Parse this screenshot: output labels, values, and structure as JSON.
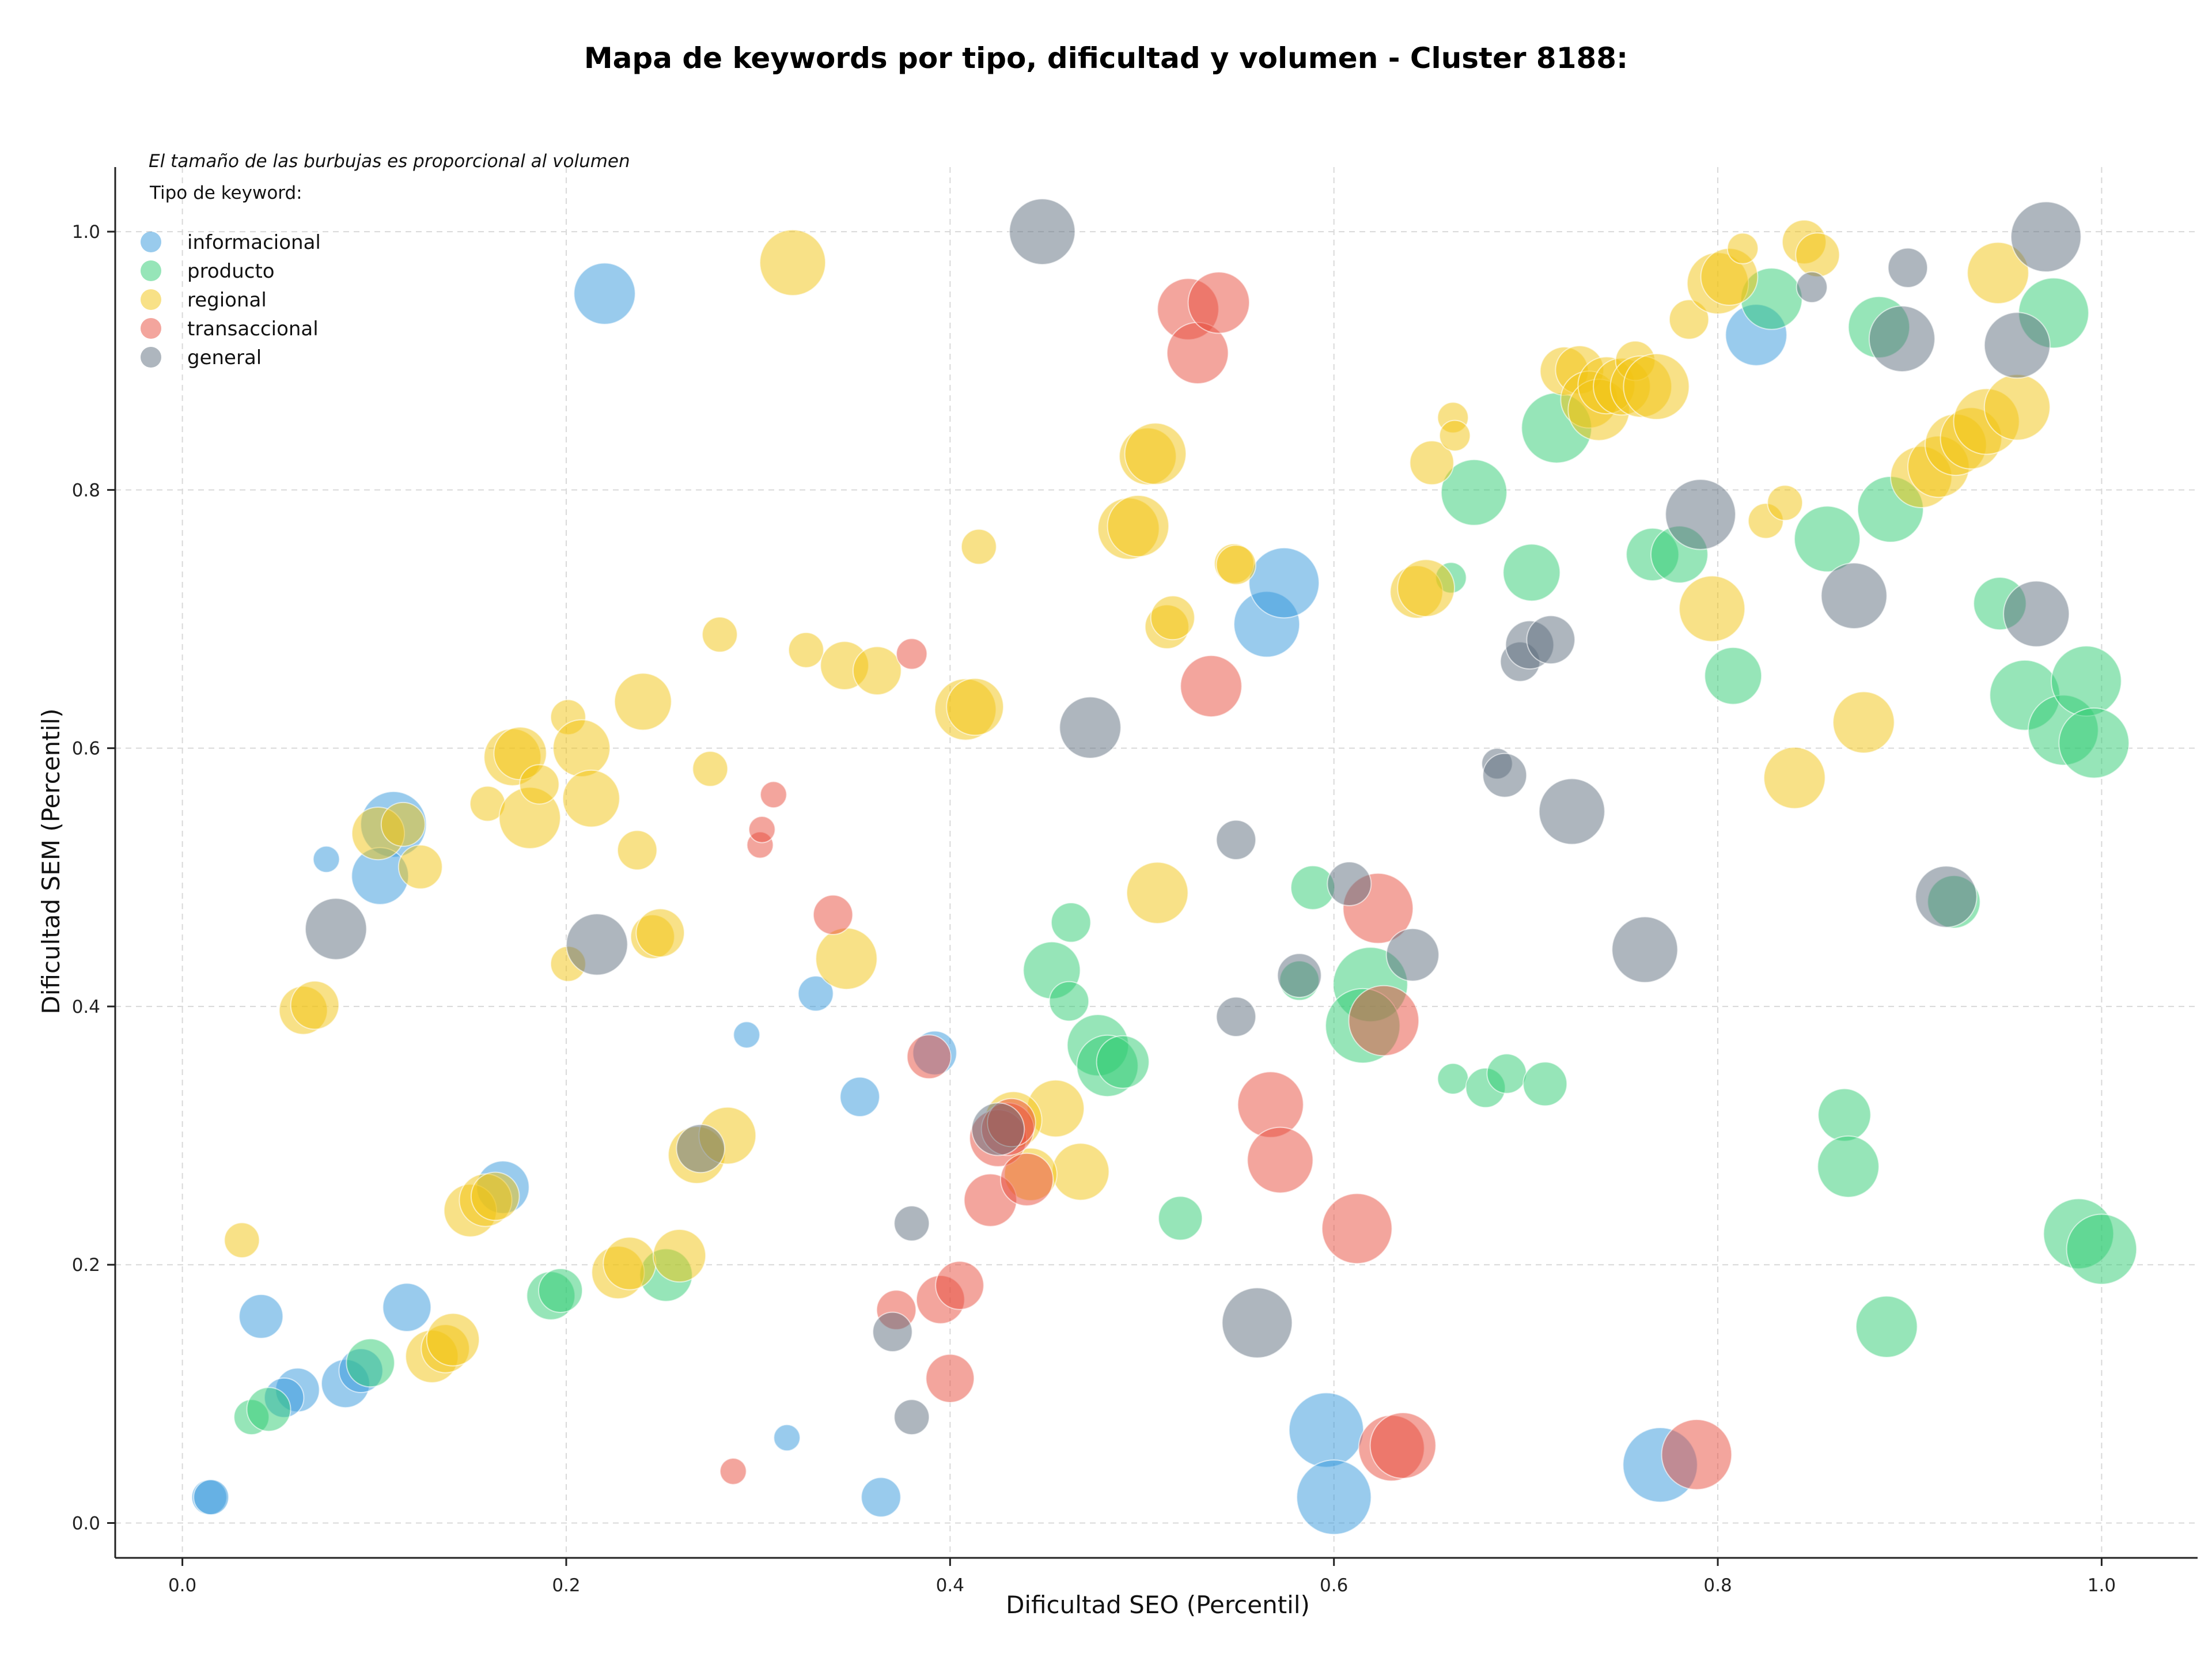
{
  "chart_data": {
    "type": "scatter",
    "title": "Mapa de keywords por tipo, dificultad y volumen - Cluster 8188:",
    "note": "El tamaño de las burbujas es proporcional al volumen",
    "xlabel": "Dificultad SEO (Percentil)",
    "ylabel": "Dificultad SEM (Percentil)",
    "xlim": [
      -0.035,
      1.05
    ],
    "ylim": [
      -0.027,
      1.05
    ],
    "xticks": [
      "0.0",
      "0.2",
      "0.4",
      "0.6",
      "0.8",
      "1.0"
    ],
    "yticks": [
      "0.0",
      "0.2",
      "0.4",
      "0.6",
      "0.8",
      "1.0"
    ],
    "grid": true,
    "legend": {
      "title": "Tipo de keyword:",
      "placement": "top-left"
    },
    "series": [
      {
        "name": "informacional",
        "color": "#3498db",
        "points": [
          [
            0.22,
            0.952,
            1.4
          ],
          [
            0.11,
            0.541,
            1.5
          ],
          [
            0.103,
            0.501,
            1.3
          ],
          [
            0.075,
            0.514,
            0.6
          ],
          [
            0.167,
            0.26,
            1.2
          ],
          [
            0.041,
            0.16,
            1.0
          ],
          [
            0.117,
            0.167,
            1.1
          ],
          [
            0.06,
            0.103,
            1.0
          ],
          [
            0.053,
            0.097,
            0.9
          ],
          [
            0.085,
            0.108,
            1.1
          ],
          [
            0.093,
            0.118,
            1.0
          ],
          [
            0.014,
            0.02,
            0.8
          ],
          [
            0.015,
            0.02,
            0.8
          ],
          [
            0.294,
            0.378,
            0.6
          ],
          [
            0.33,
            0.41,
            0.8
          ],
          [
            0.353,
            0.33,
            0.9
          ],
          [
            0.392,
            0.364,
            1.0
          ],
          [
            0.315,
            0.066,
            0.6
          ],
          [
            0.364,
            0.02,
            0.9
          ],
          [
            0.565,
            0.696,
            1.5
          ],
          [
            0.574,
            0.728,
            1.6
          ],
          [
            0.596,
            0.072,
            1.7
          ],
          [
            0.6,
            0.02,
            1.7
          ],
          [
            0.77,
            0.045,
            1.7
          ],
          [
            0.82,
            0.92,
            1.4
          ]
        ]
      },
      {
        "name": "producto",
        "color": "#2ecc71",
        "points": [
          [
            0.036,
            0.082,
            0.8
          ],
          [
            0.045,
            0.088,
            1.0
          ],
          [
            0.098,
            0.124,
            1.1
          ],
          [
            0.192,
            0.176,
            1.1
          ],
          [
            0.197,
            0.18,
            1.0
          ],
          [
            0.252,
            0.192,
            1.2
          ],
          [
            0.463,
            0.465,
            0.9
          ],
          [
            0.453,
            0.428,
            1.3
          ],
          [
            0.462,
            0.404,
            0.9
          ],
          [
            0.477,
            0.37,
            1.4
          ],
          [
            0.482,
            0.354,
            1.4
          ],
          [
            0.49,
            0.357,
            1.2
          ],
          [
            0.52,
            0.236,
            1.0
          ],
          [
            0.589,
            0.492,
            1.0
          ],
          [
            0.582,
            0.42,
            0.9
          ],
          [
            0.619,
            0.417,
            1.7
          ],
          [
            0.615,
            0.385,
            1.7
          ],
          [
            0.661,
            0.732,
            0.7
          ],
          [
            0.673,
            0.798,
            1.5
          ],
          [
            0.662,
            0.344,
            0.7
          ],
          [
            0.679,
            0.337,
            0.9
          ],
          [
            0.69,
            0.348,
            0.9
          ],
          [
            0.71,
            0.34,
            1.0
          ],
          [
            0.703,
            0.736,
            1.3
          ],
          [
            0.716,
            0.848,
            1.6
          ],
          [
            0.766,
            0.75,
            1.2
          ],
          [
            0.78,
            0.75,
            1.3
          ],
          [
            0.808,
            0.656,
            1.3
          ],
          [
            0.828,
            0.948,
            1.4
          ],
          [
            0.857,
            0.762,
            1.5
          ],
          [
            0.866,
            0.316,
            1.2
          ],
          [
            0.868,
            0.276,
            1.4
          ],
          [
            0.884,
            0.926,
            1.4
          ],
          [
            0.89,
            0.785,
            1.5
          ],
          [
            0.888,
            0.152,
            1.4
          ],
          [
            0.923,
            0.481,
            1.2
          ],
          [
            0.947,
            0.712,
            1.2
          ],
          [
            0.96,
            0.641,
            1.6
          ],
          [
            0.975,
            0.937,
            1.6
          ],
          [
            0.98,
            0.614,
            1.6
          ],
          [
            0.992,
            0.652,
            1.6
          ],
          [
            0.996,
            0.604,
            1.6
          ],
          [
            0.988,
            0.224,
            1.6
          ],
          [
            1.0,
            0.212,
            1.6
          ]
        ]
      },
      {
        "name": "regional",
        "color": "#f1c40f",
        "points": [
          [
            0.031,
            0.219,
            0.8
          ],
          [
            0.063,
            0.397,
            1.1
          ],
          [
            0.069,
            0.401,
            1.1
          ],
          [
            0.102,
            0.534,
            1.2
          ],
          [
            0.115,
            0.541,
            1.0
          ],
          [
            0.124,
            0.508,
            1.0
          ],
          [
            0.159,
            0.557,
            0.8
          ],
          [
            0.172,
            0.593,
            1.3
          ],
          [
            0.176,
            0.596,
            1.2
          ],
          [
            0.181,
            0.546,
            1.4
          ],
          [
            0.186,
            0.572,
            0.9
          ],
          [
            0.201,
            0.624,
            0.8
          ],
          [
            0.208,
            0.6,
            1.3
          ],
          [
            0.213,
            0.561,
            1.3
          ],
          [
            0.201,
            0.433,
            0.8
          ],
          [
            0.24,
            0.636,
            1.3
          ],
          [
            0.237,
            0.521,
            0.9
          ],
          [
            0.245,
            0.454,
            1.0
          ],
          [
            0.249,
            0.457,
            1.1
          ],
          [
            0.275,
            0.584,
            0.8
          ],
          [
            0.28,
            0.688,
            0.8
          ],
          [
            0.318,
            0.976,
            1.5
          ],
          [
            0.325,
            0.676,
            0.8
          ],
          [
            0.345,
            0.664,
            1.1
          ],
          [
            0.362,
            0.66,
            1.1
          ],
          [
            0.346,
            0.437,
            1.4
          ],
          [
            0.415,
            0.756,
            0.8
          ],
          [
            0.408,
            0.63,
            1.4
          ],
          [
            0.413,
            0.632,
            1.3
          ],
          [
            0.15,
            0.242,
            1.2
          ],
          [
            0.158,
            0.25,
            1.2
          ],
          [
            0.163,
            0.253,
            1.1
          ],
          [
            0.13,
            0.129,
            1.2
          ],
          [
            0.137,
            0.135,
            1.1
          ],
          [
            0.141,
            0.142,
            1.2
          ],
          [
            0.227,
            0.194,
            1.2
          ],
          [
            0.233,
            0.201,
            1.2
          ],
          [
            0.259,
            0.207,
            1.2
          ],
          [
            0.268,
            0.285,
            1.3
          ],
          [
            0.284,
            0.3,
            1.3
          ],
          [
            0.455,
            0.321,
            1.3
          ],
          [
            0.468,
            0.272,
            1.3
          ],
          [
            0.442,
            0.27,
            1.2
          ],
          [
            0.433,
            0.312,
            1.3
          ],
          [
            0.493,
            0.77,
            1.4
          ],
          [
            0.498,
            0.772,
            1.4
          ],
          [
            0.503,
            0.826,
            1.3
          ],
          [
            0.507,
            0.828,
            1.4
          ],
          [
            0.513,
            0.694,
            1.0
          ],
          [
            0.516,
            0.701,
            1.0
          ],
          [
            0.508,
            0.488,
            1.4
          ],
          [
            0.548,
            0.743,
            0.9
          ],
          [
            0.549,
            0.742,
            0.9
          ],
          [
            0.643,
            0.721,
            1.2
          ],
          [
            0.648,
            0.724,
            1.3
          ],
          [
            0.651,
            0.821,
            1.0
          ],
          [
            0.662,
            0.856,
            0.7
          ],
          [
            0.663,
            0.842,
            0.7
          ],
          [
            0.72,
            0.892,
            1.1
          ],
          [
            0.728,
            0.893,
            1.1
          ],
          [
            0.733,
            0.87,
            1.3
          ],
          [
            0.738,
            0.862,
            1.4
          ],
          [
            0.742,
            0.881,
            1.3
          ],
          [
            0.75,
            0.88,
            1.3
          ],
          [
            0.757,
            0.9,
            0.9
          ],
          [
            0.76,
            0.88,
            1.4
          ],
          [
            0.768,
            0.88,
            1.5
          ],
          [
            0.785,
            0.932,
            0.9
          ],
          [
            0.797,
            0.708,
            1.5
          ],
          [
            0.8,
            0.96,
            1.4
          ],
          [
            0.806,
            0.965,
            1.3
          ],
          [
            0.813,
            0.987,
            0.7
          ],
          [
            0.825,
            0.776,
            0.8
          ],
          [
            0.835,
            0.79,
            0.8
          ],
          [
            0.84,
            0.577,
            1.4
          ],
          [
            0.845,
            0.992,
            1.0
          ],
          [
            0.852,
            0.982,
            1.0
          ],
          [
            0.876,
            0.62,
            1.4
          ],
          [
            0.906,
            0.81,
            1.4
          ],
          [
            0.915,
            0.818,
            1.4
          ],
          [
            0.924,
            0.835,
            1.4
          ],
          [
            0.932,
            0.84,
            1.4
          ],
          [
            0.94,
            0.853,
            1.5
          ],
          [
            0.946,
            0.968,
            1.4
          ],
          [
            0.956,
            0.864,
            1.5
          ]
        ]
      },
      {
        "name": "transaccional",
        "color": "#e74c3c",
        "points": [
          [
            0.287,
            0.04,
            0.6
          ],
          [
            0.301,
            0.525,
            0.6
          ],
          [
            0.302,
            0.537,
            0.6
          ],
          [
            0.308,
            0.564,
            0.6
          ],
          [
            0.339,
            0.471,
            0.9
          ],
          [
            0.38,
            0.673,
            0.7
          ],
          [
            0.389,
            0.361,
            1.0
          ],
          [
            0.372,
            0.165,
            0.9
          ],
          [
            0.395,
            0.173,
            1.1
          ],
          [
            0.405,
            0.184,
            1.1
          ],
          [
            0.4,
            0.112,
            1.1
          ],
          [
            0.425,
            0.298,
            1.3
          ],
          [
            0.43,
            0.305,
            1.2
          ],
          [
            0.421,
            0.25,
            1.2
          ],
          [
            0.44,
            0.266,
            1.2
          ],
          [
            0.432,
            0.31,
            1.1
          ],
          [
            0.524,
            0.94,
            1.4
          ],
          [
            0.529,
            0.906,
            1.4
          ],
          [
            0.54,
            0.945,
            1.4
          ],
          [
            0.536,
            0.648,
            1.4
          ],
          [
            0.567,
            0.324,
            1.5
          ],
          [
            0.572,
            0.281,
            1.5
          ],
          [
            0.612,
            0.228,
            1.6
          ],
          [
            0.623,
            0.476,
            1.6
          ],
          [
            0.626,
            0.389,
            1.6
          ],
          [
            0.63,
            0.058,
            1.5
          ],
          [
            0.636,
            0.06,
            1.5
          ],
          [
            0.789,
            0.053,
            1.6
          ]
        ]
      },
      {
        "name": "general",
        "color": "#5d6d7e",
        "points": [
          [
            0.08,
            0.46,
            1.4
          ],
          [
            0.216,
            0.448,
            1.4
          ],
          [
            0.27,
            0.29,
            1.1
          ],
          [
            0.37,
            0.148,
            0.9
          ],
          [
            0.38,
            0.232,
            0.8
          ],
          [
            0.38,
            0.082,
            0.8
          ],
          [
            0.425,
            0.305,
            1.2
          ],
          [
            0.448,
            1.0,
            1.5
          ],
          [
            0.473,
            0.616,
            1.4
          ],
          [
            0.549,
            0.529,
            0.9
          ],
          [
            0.549,
            0.392,
            0.9
          ],
          [
            0.56,
            0.155,
            1.6
          ],
          [
            0.582,
            0.424,
            1.0
          ],
          [
            0.608,
            0.495,
            1.0
          ],
          [
            0.641,
            0.44,
            1.2
          ],
          [
            0.685,
            0.588,
            0.7
          ],
          [
            0.689,
            0.579,
            1.0
          ],
          [
            0.697,
            0.667,
            0.9
          ],
          [
            0.702,
            0.68,
            1.1
          ],
          [
            0.713,
            0.684,
            1.1
          ],
          [
            0.724,
            0.551,
            1.5
          ],
          [
            0.762,
            0.444,
            1.5
          ],
          [
            0.791,
            0.781,
            1.6
          ],
          [
            0.849,
            0.957,
            0.7
          ],
          [
            0.871,
            0.718,
            1.5
          ],
          [
            0.899,
            0.972,
            0.9
          ],
          [
            0.896,
            0.917,
            1.5
          ],
          [
            0.919,
            0.485,
            1.4
          ],
          [
            0.956,
            0.912,
            1.5
          ],
          [
            0.966,
            0.704,
            1.5
          ],
          [
            0.971,
            0.996,
            1.6
          ]
        ]
      }
    ]
  }
}
